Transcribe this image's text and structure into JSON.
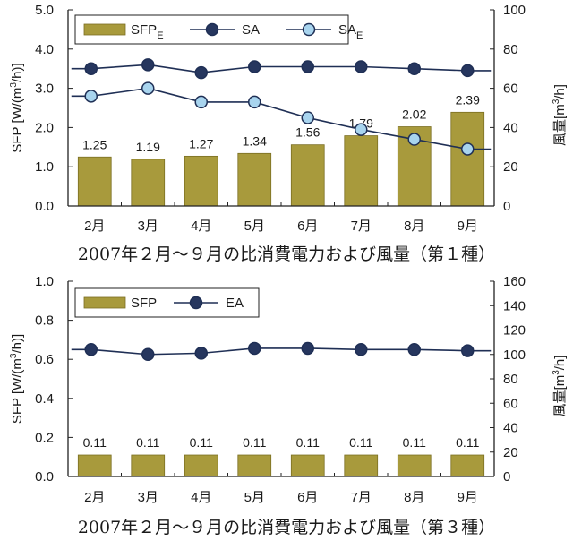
{
  "charts": [
    {
      "caption": "2007年２月～９月の比消費電力および風量（第１種）",
      "chart_data": {
        "type": "bar",
        "categories": [
          "2月",
          "3月",
          "4月",
          "5月",
          "6月",
          "7月",
          "8月",
          "9月"
        ],
        "series": [
          {
            "name": "SFP",
            "name_sub": "E",
            "kind": "bar",
            "axis": "left",
            "values": [
              1.25,
              1.19,
              1.27,
              1.34,
              1.56,
              1.79,
              2.02,
              2.39
            ],
            "labels": [
              "1.25",
              "1.19",
              "1.27",
              "1.34",
              "1.56",
              "1.79",
              "2.02",
              "2.39"
            ]
          },
          {
            "name": "SA",
            "name_sub": "",
            "kind": "line",
            "axis": "right",
            "marker": "dark",
            "values": [
              70,
              72,
              68,
              71,
              71,
              71,
              70,
              69
            ]
          },
          {
            "name": "SA",
            "name_sub": "E",
            "kind": "line",
            "axis": "right",
            "marker": "light",
            "values": [
              56,
              60,
              53,
              53,
              45,
              39,
              34,
              29
            ]
          }
        ],
        "ylabel": "SFP [W/(m³/h)]",
        "ylabel_parts": {
          "main": "SFP [W/(m",
          "sup": "3",
          "tail": "/h)]"
        },
        "y2label": "風量[m³/h]",
        "y2label_parts": {
          "main": "風量[m",
          "sup": "3",
          "tail": "/h]"
        },
        "ylim": [
          0.0,
          5.0
        ],
        "yticks": [
          "0.0",
          "1.0",
          "2.0",
          "3.0",
          "4.0",
          "5.0"
        ],
        "y2lim": [
          0,
          100
        ],
        "y2ticks": [
          "0",
          "20",
          "40",
          "60",
          "80",
          "100"
        ],
        "legend_position": "top-left",
        "grid": false
      }
    },
    {
      "caption": "2007年２月～９月の比消費電力および風量（第３種）",
      "chart_data": {
        "type": "bar",
        "categories": [
          "2月",
          "3月",
          "4月",
          "5月",
          "6月",
          "7月",
          "8月",
          "9月"
        ],
        "series": [
          {
            "name": "SFP",
            "name_sub": "",
            "kind": "bar",
            "axis": "left",
            "values": [
              0.11,
              0.11,
              0.11,
              0.11,
              0.11,
              0.11,
              0.11,
              0.11
            ],
            "labels": [
              "0.11",
              "0.11",
              "0.11",
              "0.11",
              "0.11",
              "0.11",
              "0.11",
              "0.11"
            ]
          },
          {
            "name": "EA",
            "name_sub": "",
            "kind": "line",
            "axis": "right",
            "marker": "dark",
            "values": [
              104,
              100,
              101,
              105,
              105,
              104,
              104,
              103
            ]
          }
        ],
        "ylabel": "SFP [W/(m³/h)]",
        "ylabel_parts": {
          "main": "SFP [W/(m",
          "sup": "3",
          "tail": "/h)]"
        },
        "y2label": "風量[m³/h]",
        "y2label_parts": {
          "main": "風量[m",
          "sup": "3",
          "tail": "/h]"
        },
        "ylim": [
          0.0,
          1.0
        ],
        "yticks": [
          "0.0",
          "0.2",
          "0.4",
          "0.6",
          "0.8",
          "1.0"
        ],
        "y2lim": [
          0,
          160
        ],
        "y2ticks": [
          "0",
          "20",
          "40",
          "60",
          "80",
          "100",
          "120",
          "140",
          "160"
        ],
        "legend_position": "top-left",
        "grid": false
      }
    }
  ],
  "colors": {
    "bar_fill": "#a89a3c",
    "bar_edge": "#7a6e22",
    "line": "#1f2f55",
    "marker_dark": "#26365e",
    "marker_light": "#a8d4ee",
    "axis": "#222222"
  }
}
